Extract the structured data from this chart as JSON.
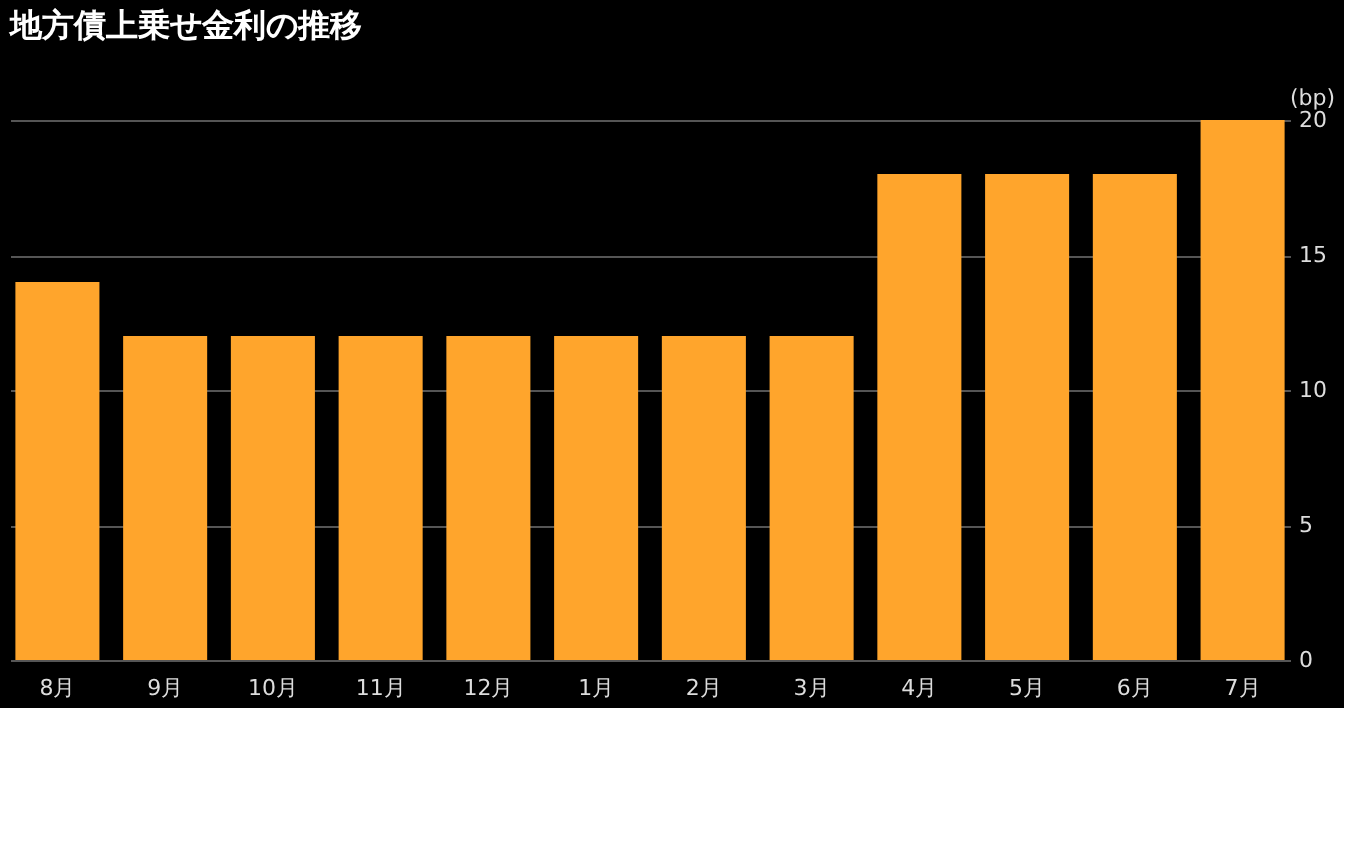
{
  "chart_data": {
    "type": "bar",
    "title": "地方債上乗せ金利の推移",
    "ylabel": "(bp)",
    "categories": [
      "8月",
      "9月",
      "10月",
      "11月",
      "12月",
      "1月",
      "2月",
      "3月",
      "4月",
      "5月",
      "6月",
      "7月"
    ],
    "values": [
      14,
      12,
      12,
      12,
      12,
      12,
      12,
      12,
      18,
      18,
      18,
      20
    ],
    "color": "#ffa52c",
    "ylim": [
      0,
      20
    ],
    "yticks": [
      0,
      5,
      10,
      15,
      20
    ],
    "grid": "y"
  }
}
